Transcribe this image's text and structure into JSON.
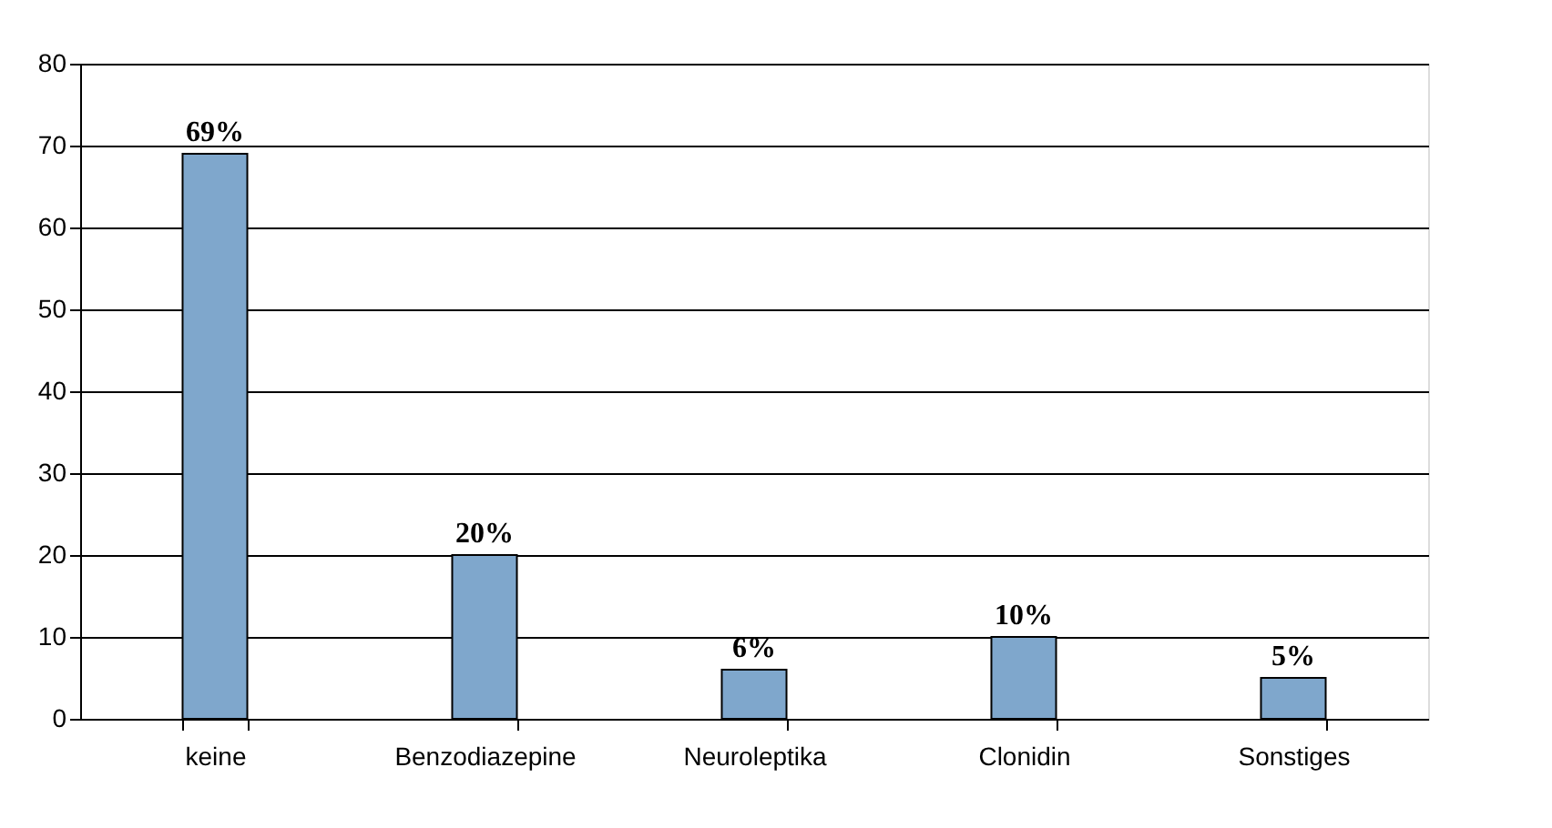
{
  "chart_data": {
    "type": "bar",
    "categories": [
      "keine",
      "Benzodiazepine",
      "Neuroleptika",
      "Clonidin",
      "Sonstiges"
    ],
    "values": [
      69,
      20,
      6,
      10,
      5
    ],
    "value_labels": [
      "69%",
      "20%",
      "6%",
      "10%",
      "5%"
    ],
    "color": "#7fa7cc",
    "ylim": [
      0,
      80
    ],
    "yticks": [
      0,
      10,
      20,
      30,
      40,
      50,
      60,
      70,
      80
    ],
    "grid": "y"
  }
}
